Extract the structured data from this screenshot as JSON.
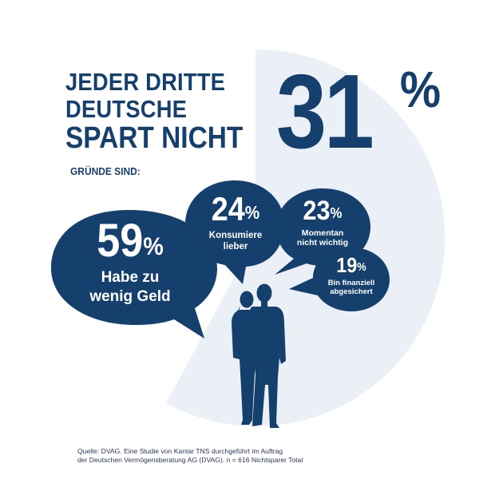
{
  "headline": {
    "line1": "JEDER DRITTE",
    "line2": "DEUTSCHE",
    "line3": "SPART NICHT"
  },
  "highlight": {
    "value": "31",
    "unit": "%",
    "share": 0.31
  },
  "reasons_label": "GRÜNDE SIND:",
  "reasons": [
    {
      "value": "59",
      "unit": "%",
      "label_lines": [
        "Habe zu",
        "wenig Geld"
      ]
    },
    {
      "value": "24",
      "unit": "%",
      "label_lines": [
        "Konsumiere",
        "lieber"
      ]
    },
    {
      "value": "23",
      "unit": "%",
      "label_lines": [
        "Momentan",
        "nicht wichtig"
      ]
    },
    {
      "value": "19",
      "unit": "%",
      "label_lines": [
        "Bin finanziell",
        "abgesichert"
      ]
    }
  ],
  "source": {
    "line1": "Quelle: DVAG. Eine Studie von Kantar TNS durchgeführt im Auftrag",
    "line2": "der Deutschen Vermögensberatung AG (DVAG). n = 616 Nichtsparer Total"
  },
  "colors": {
    "primary": "#15406e",
    "pie_background": "#ebf0f6",
    "text_on_primary": "#ffffff"
  },
  "icons": [
    "couple-silhouette-icon",
    "pie-segment-shape"
  ]
}
